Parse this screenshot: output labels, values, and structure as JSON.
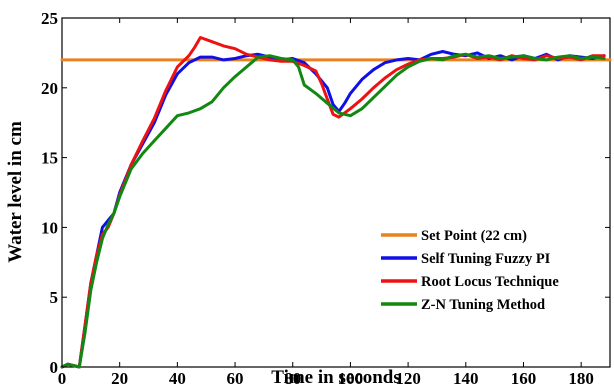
{
  "chart_data": {
    "type": "line",
    "title": "",
    "xlabel": "Time in seconds",
    "ylabel": "Water level in cm",
    "xlim": [
      0,
      190
    ],
    "ylim": [
      0,
      25
    ],
    "xticks": [
      "0",
      "20",
      "40",
      "60",
      "80",
      "100",
      "120",
      "140",
      "160",
      "180"
    ],
    "yticks": [
      "0",
      "5",
      "10",
      "15",
      "20",
      "25"
    ],
    "grid": false,
    "legend_position": "bottom-right",
    "series": [
      {
        "name": "Set Point (22 cm)",
        "color": "#e8821e",
        "x": [
          0,
          190
        ],
        "y": [
          22,
          22
        ]
      },
      {
        "name": "Self Tuning Fuzzy PI",
        "color": "#1010e6",
        "x": [
          0,
          2,
          4,
          6,
          8,
          10,
          12,
          14,
          16,
          18,
          20,
          24,
          28,
          32,
          36,
          40,
          44,
          48,
          52,
          56,
          60,
          64,
          68,
          72,
          76,
          80,
          84,
          88,
          92,
          94,
          96,
          98,
          100,
          104,
          108,
          112,
          116,
          120,
          124,
          128,
          132,
          136,
          140,
          144,
          148,
          152,
          156,
          160,
          164,
          168,
          172,
          176,
          180,
          184,
          188
        ],
        "y": [
          0,
          0.2,
          0.1,
          0,
          3,
          6,
          8,
          10,
          10.5,
          11,
          12.5,
          14.5,
          16,
          17.5,
          19.5,
          21,
          21.8,
          22.2,
          22.2,
          22.0,
          22.1,
          22.3,
          22.4,
          22.2,
          22.0,
          22.1,
          21.8,
          21.0,
          20.0,
          18.8,
          18.3,
          18.9,
          19.6,
          20.6,
          21.3,
          21.8,
          22.0,
          22.1,
          22.0,
          22.4,
          22.6,
          22.4,
          22.3,
          22.5,
          22.1,
          22.3,
          22.0,
          22.3,
          22.1,
          22.4,
          22.0,
          22.3,
          22.2,
          22.1,
          22.3
        ]
      },
      {
        "name": "Root Locus Technique",
        "color": "#ee1111",
        "x": [
          0,
          2,
          4,
          6,
          8,
          10,
          12,
          14,
          16,
          18,
          20,
          24,
          28,
          32,
          36,
          40,
          44,
          46,
          48,
          52,
          56,
          60,
          64,
          68,
          72,
          76,
          80,
          84,
          88,
          90,
          92,
          94,
          96,
          100,
          104,
          108,
          112,
          116,
          120,
          124,
          128,
          132,
          136,
          140,
          144,
          148,
          152,
          156,
          160,
          164,
          168,
          172,
          176,
          180,
          184,
          188
        ],
        "y": [
          0,
          0.2,
          0.1,
          0,
          3,
          6,
          8,
          9.5,
          10,
          11,
          12.3,
          14.5,
          16.2,
          17.8,
          19.8,
          21.5,
          22.3,
          22.9,
          23.6,
          23.3,
          23.0,
          22.8,
          22.4,
          22.2,
          22.0,
          21.9,
          21.9,
          21.6,
          21.2,
          20.3,
          19.2,
          18.1,
          17.9,
          18.5,
          19.2,
          20.0,
          20.7,
          21.3,
          21.7,
          22.0,
          22.1,
          22.1,
          22.2,
          22.4,
          22.1,
          22.2,
          22.0,
          22.3,
          22.1,
          22.0,
          22.3,
          22.1,
          22.2,
          22.0,
          22.3,
          22.3
        ]
      },
      {
        "name": "Z-N Tuning Method",
        "color": "#118811",
        "x": [
          0,
          2,
          4,
          6,
          8,
          10,
          12,
          14,
          16,
          18,
          20,
          24,
          28,
          32,
          36,
          40,
          44,
          48,
          52,
          56,
          60,
          64,
          68,
          72,
          76,
          80,
          82,
          84,
          88,
          92,
          96,
          100,
          104,
          108,
          112,
          116,
          120,
          124,
          128,
          132,
          136,
          140,
          144,
          148,
          152,
          156,
          160,
          164,
          168,
          172,
          176,
          180,
          184,
          188
        ],
        "y": [
          0,
          0.2,
          0.1,
          0,
          2.5,
          5.5,
          7.5,
          9.2,
          10.2,
          11,
          12.2,
          14.2,
          15.3,
          16.2,
          17.1,
          18.0,
          18.2,
          18.5,
          19.0,
          20.0,
          20.8,
          21.5,
          22.2,
          22.3,
          22.1,
          22.0,
          21.5,
          20.2,
          19.6,
          18.9,
          18.2,
          18.0,
          18.5,
          19.3,
          20.1,
          20.9,
          21.5,
          21.9,
          22.1,
          22.0,
          22.3,
          22.4,
          22.2,
          22.3,
          22.1,
          22.2,
          22.3,
          22.1,
          22.0,
          22.2,
          22.3,
          22.1,
          22.2,
          22.1
        ]
      }
    ]
  }
}
